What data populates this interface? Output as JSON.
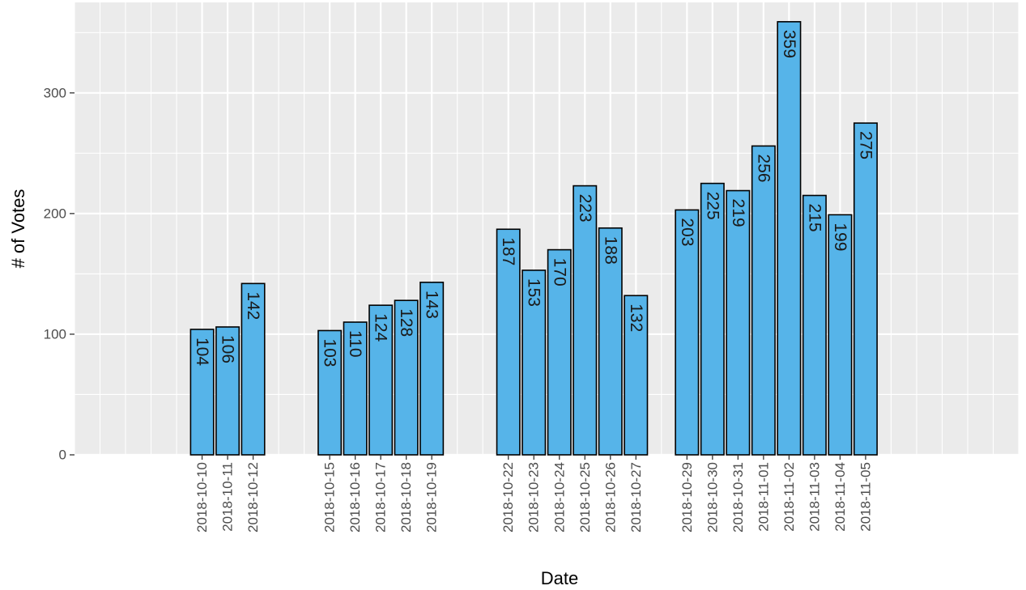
{
  "chart_data": {
    "type": "bar",
    "xlabel": "Date",
    "ylabel": "# of Votes",
    "ylim": [
      0,
      375
    ],
    "yticks": [
      0,
      100,
      200,
      300
    ],
    "grid": true,
    "legend": "none",
    "bar_color": "#56B4E9",
    "bar_edge_color": "#000000",
    "panel_color": "#EBEBEB",
    "x_axis_type": "date",
    "xlim": [
      "2018-10-05",
      "2018-11-11"
    ],
    "points": [
      {
        "x": "2018-10-10",
        "y": 104
      },
      {
        "x": "2018-10-11",
        "y": 106
      },
      {
        "x": "2018-10-12",
        "y": 142
      },
      {
        "x": "2018-10-15",
        "y": 103
      },
      {
        "x": "2018-10-16",
        "y": 110
      },
      {
        "x": "2018-10-17",
        "y": 124
      },
      {
        "x": "2018-10-18",
        "y": 128
      },
      {
        "x": "2018-10-19",
        "y": 143
      },
      {
        "x": "2018-10-22",
        "y": 187
      },
      {
        "x": "2018-10-23",
        "y": 153
      },
      {
        "x": "2018-10-24",
        "y": 170
      },
      {
        "x": "2018-10-25",
        "y": 223
      },
      {
        "x": "2018-10-26",
        "y": 188
      },
      {
        "x": "2018-10-27",
        "y": 132
      },
      {
        "x": "2018-10-29",
        "y": 203
      },
      {
        "x": "2018-10-30",
        "y": 225
      },
      {
        "x": "2018-10-31",
        "y": 219
      },
      {
        "x": "2018-11-01",
        "y": 256
      },
      {
        "x": "2018-11-02",
        "y": 359
      },
      {
        "x": "2018-11-03",
        "y": 215
      },
      {
        "x": "2018-11-04",
        "y": 199
      },
      {
        "x": "2018-11-05",
        "y": 275
      }
    ]
  }
}
